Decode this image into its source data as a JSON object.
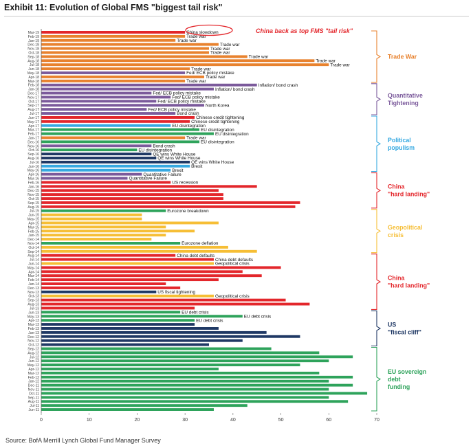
{
  "title": "Exhibit 11: Evolution of Global FMS \"biggest tail risk\"",
  "source": "Source: BofA Merrill Lynch Global Fund Manager Survey",
  "callout": "China back as top FMS \"tail risk\"",
  "colors": {
    "trade_war": "#E8822E",
    "quantitative_tightening": "#7B5A9B",
    "political_populism": "#36A9E1",
    "china_hard_landing": "#E3262B",
    "geopolitical_crisis": "#F6BE35",
    "us_fiscal_cliff": "#1F3864",
    "eu_sovereign_debt_funding": "#2EA35B",
    "callout": "#E3262B"
  },
  "chart_data": {
    "type": "bar",
    "orientation": "horizontal",
    "xlim": [
      0,
      70
    ],
    "xticks": [
      0,
      10,
      20,
      30,
      40,
      50,
      60,
      70
    ],
    "grid": false,
    "legend": "right-side brackets",
    "groups": [
      {
        "label": "Trade War",
        "color_key": "trade_war",
        "months": [
          {
            "m": "Mar-19",
            "v": 30,
            "a": "China slowdown",
            "c": "china_hard_landing"
          },
          {
            "m": "Feb-19",
            "v": 30,
            "a": "Trade war"
          },
          {
            "m": "Jan-19",
            "v": 28,
            "a": "Trade war"
          },
          {
            "m": "Dec-18",
            "v": 37,
            "a": "Trade war"
          },
          {
            "m": "Nov-18",
            "v": 35,
            "a": "Trade war"
          },
          {
            "m": "Oct-18",
            "v": 35,
            "a": "Trade war"
          },
          {
            "m": "Sep-18",
            "v": 43,
            "a": "Trade war"
          },
          {
            "m": "Aug-18",
            "v": 57,
            "a": "Trade war"
          },
          {
            "m": "Jul-18",
            "v": 60,
            "a": "Trade war"
          },
          {
            "m": "Jun-18",
            "v": 31,
            "a": "Trade war"
          },
          {
            "m": "May-18",
            "v": 30,
            "a": "Fed/ ECB policy mistake",
            "c": "quantitative_tightening"
          },
          {
            "m": "Apr-18",
            "v": 34,
            "a": "Trade war"
          },
          {
            "m": "Mar-18",
            "v": 30,
            "a": "Trade war"
          }
        ]
      },
      {
        "label": "Quantitative Tightening",
        "color_key": "quantitative_tightening",
        "months": [
          {
            "m": "Feb-18",
            "v": 45,
            "a": "Inflation/ bond crash"
          },
          {
            "m": "Jan-18",
            "v": 36,
            "a": "Inflation/ bond crash"
          },
          {
            "m": "Dec-17",
            "v": 23,
            "a": "Fed/ ECB policy mistake"
          },
          {
            "m": "Nov-17",
            "v": 27,
            "a": "Fed/ ECB policy mistake"
          },
          {
            "m": "Oct-17",
            "v": 24,
            "a": "Fed/ ECB policy mistake"
          },
          {
            "m": "Sep-17",
            "v": 34,
            "a": "North Korea"
          },
          {
            "m": "Aug-17",
            "v": 22,
            "a": "Fed/ ECB policy mistake"
          },
          {
            "m": "Jul-17",
            "v": 28,
            "a": "Bond crash"
          }
        ]
      },
      {
        "label": "Political populism",
        "color_key": "political_populism",
        "months": [
          {
            "m": "Jun-17",
            "v": 32,
            "a": "Chinese credit tightening",
            "c": "china_hard_landing"
          },
          {
            "m": "May-17",
            "v": 31,
            "a": "Chinese credit tightening",
            "c": "china_hard_landing"
          },
          {
            "m": "Apr-17",
            "v": 27,
            "a": "EU disintegration"
          },
          {
            "m": "Mar-17",
            "v": 33,
            "a": "EU disintegration",
            "c": "eu_sovereign_debt_funding"
          },
          {
            "m": "Feb-17",
            "v": 36,
            "a": "EU disintegration",
            "c": "eu_sovereign_debt_funding"
          },
          {
            "m": "Jan-17",
            "v": 30,
            "a": "Trade war",
            "c": "trade_war"
          },
          {
            "m": "Dec-16",
            "v": 33,
            "a": "EU disintegration",
            "c": "eu_sovereign_debt_funding"
          },
          {
            "m": "Nov-16",
            "v": 23,
            "a": "Bond crash",
            "c": "quantitative_tightening"
          },
          {
            "m": "Oct-16",
            "v": 20,
            "a": "EU disintegration",
            "c": "eu_sovereign_debt_funding"
          },
          {
            "m": "Sep-16",
            "v": 23,
            "a": "QE wins White House",
            "c": "us_fiscal_cliff"
          },
          {
            "m": "Aug-16",
            "v": 24,
            "a": "QE wins White House",
            "c": "us_fiscal_cliff"
          },
          {
            "m": "Jul-16",
            "v": 31,
            "a": "QE wins White House",
            "c": "us_fiscal_cliff"
          },
          {
            "m": "Jun-16",
            "v": 31,
            "a": "Brexit"
          },
          {
            "m": "May-16",
            "v": 27,
            "a": "Brexit"
          }
        ]
      },
      {
        "label": "China \"hard landing\"",
        "color_key": "china_hard_landing",
        "months": [
          {
            "m": "Apr-16",
            "v": 21,
            "a": "Quantitative Failure",
            "c": "quantitative_tightening"
          },
          {
            "m": "Mar-16",
            "v": 18,
            "a": "Quantitative Failure",
            "c": "quantitative_tightening"
          },
          {
            "m": "Feb-16",
            "v": 27,
            "a": "US recession"
          },
          {
            "m": "Jan-16",
            "v": 45
          },
          {
            "m": "Dec-15",
            "v": 37
          },
          {
            "m": "Nov-15",
            "v": 38
          },
          {
            "m": "Oct-15",
            "v": 38
          },
          {
            "m": "Sep-15",
            "v": 54
          },
          {
            "m": "Aug-15",
            "v": 53
          }
        ]
      },
      {
        "label": "Geopolitical crisis",
        "color_key": "geopolitical_crisis",
        "months": [
          {
            "m": "Jul-15",
            "v": 26,
            "a": "Eurozone breakdown",
            "c": "eu_sovereign_debt_funding"
          },
          {
            "m": "Jun-15",
            "v": 21
          },
          {
            "m": "May-15",
            "v": 21
          },
          {
            "m": "Apr-15",
            "v": 37
          },
          {
            "m": "Mar-15",
            "v": 26
          },
          {
            "m": "Feb-15",
            "v": 32
          },
          {
            "m": "Jan-15",
            "v": 26
          },
          {
            "m": "Dec-14",
            "v": 23
          },
          {
            "m": "Nov-14",
            "v": 29,
            "a": "Eurozone deflation",
            "c": "eu_sovereign_debt_funding"
          },
          {
            "m": "Oct-14",
            "v": 39
          },
          {
            "m": "Sep-14",
            "v": 45
          }
        ]
      },
      {
        "label": "China \"hard landing\"",
        "color_key": "china_hard_landing",
        "months": [
          {
            "m": "Aug-14",
            "v": 28,
            "a": "China debt defaults"
          },
          {
            "m": "Jul-14",
            "v": 36,
            "a": "China debt defaults"
          },
          {
            "m": "Jun-14",
            "v": 36,
            "a": "Geopolitical crisis",
            "c": "geopolitical_crisis"
          },
          {
            "m": "May-14",
            "v": 50
          },
          {
            "m": "Apr-14",
            "v": 42
          },
          {
            "m": "Mar-14",
            "v": 46
          },
          {
            "m": "Feb-14",
            "v": 37
          },
          {
            "m": "Jan-14",
            "v": 26
          },
          {
            "m": "Dec-13",
            "v": 29
          },
          {
            "m": "Nov-13",
            "v": 24,
            "a": "US fiscal tightening",
            "c": "us_fiscal_cliff"
          },
          {
            "m": "Oct-13",
            "v": 36,
            "a": "Geopolitical crisis",
            "c": "geopolitical_crisis"
          },
          {
            "m": "Sep-13",
            "v": 51
          },
          {
            "m": "Aug-13",
            "v": 56
          },
          {
            "m": "Jul-13",
            "v": 32
          }
        ]
      },
      {
        "label": "US \"fiscal cliff\"",
        "color_key": "us_fiscal_cliff",
        "months": [
          {
            "m": "Jun-13",
            "v": 29,
            "a": "EU debt crisis",
            "c": "eu_sovereign_debt_funding"
          },
          {
            "m": "May-13",
            "v": 42,
            "a": "EU debt crisis",
            "c": "eu_sovereign_debt_funding"
          },
          {
            "m": "Apr-13",
            "v": 32,
            "a": "EU debt crisis",
            "c": "eu_sovereign_debt_funding"
          },
          {
            "m": "Mar-13",
            "v": 32
          },
          {
            "m": "Feb-13",
            "v": 37
          },
          {
            "m": "Jan-13",
            "v": 47
          },
          {
            "m": "Dec-12",
            "v": 54
          },
          {
            "m": "Nov-12",
            "v": 42
          },
          {
            "m": "Oct-12",
            "v": 35
          }
        ]
      },
      {
        "label": "EU sovereign debt funding",
        "color_key": "eu_sovereign_debt_funding",
        "months": [
          {
            "m": "Sep-12",
            "v": 48
          },
          {
            "m": "Aug-12",
            "v": 58
          },
          {
            "m": "Jul-12",
            "v": 65
          },
          {
            "m": "Jun-12",
            "v": 60
          },
          {
            "m": "May-12",
            "v": 54
          },
          {
            "m": "Apr-12",
            "v": 37
          },
          {
            "m": "Mar-12",
            "v": 58
          },
          {
            "m": "Feb-12",
            "v": 65
          },
          {
            "m": "Jan-12",
            "v": 60
          },
          {
            "m": "Dec-11",
            "v": 65
          },
          {
            "m": "Nov-11",
            "v": 60
          },
          {
            "m": "Oct-11",
            "v": 68
          },
          {
            "m": "Sep-11",
            "v": 60
          },
          {
            "m": "Aug-11",
            "v": 64
          },
          {
            "m": "Jul-11",
            "v": 43
          },
          {
            "m": "Jun-11",
            "v": 36
          }
        ]
      }
    ]
  }
}
